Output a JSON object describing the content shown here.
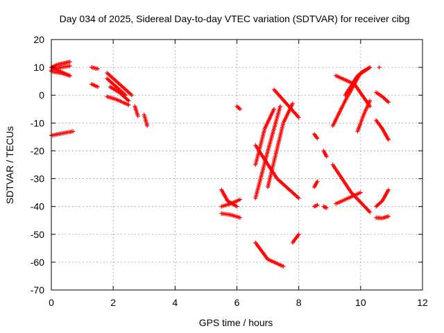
{
  "chart_data": {
    "type": "scatter",
    "title": "Day 034 of 2025, Sidereal Day-to-day VTEC variation (SDTVAR) for receiver cibg",
    "xlabel": "GPS time / hours",
    "ylabel": "SDTVAR / TECUs",
    "xlim": [
      0,
      12
    ],
    "ylim": [
      -70,
      20
    ],
    "xticks": [
      0,
      2,
      4,
      6,
      8,
      10,
      12
    ],
    "yticks": [
      20,
      10,
      0,
      -10,
      -20,
      -30,
      -40,
      -50,
      -60,
      -70
    ],
    "grid": true,
    "marker": "+",
    "marker_color": "#ff0000",
    "series": [
      {
        "name": "arc-01",
        "points": [
          [
            0.0,
            10
          ],
          [
            0.2,
            11
          ],
          [
            0.4,
            11.5
          ],
          [
            0.6,
            12
          ]
        ]
      },
      {
        "name": "arc-02",
        "points": [
          [
            0.0,
            9
          ],
          [
            0.3,
            10
          ],
          [
            0.6,
            10.5
          ]
        ]
      },
      {
        "name": "arc-03",
        "points": [
          [
            0.0,
            10
          ],
          [
            0.3,
            8.5
          ],
          [
            0.6,
            7
          ]
        ]
      },
      {
        "name": "arc-04",
        "points": [
          [
            0.0,
            8.5
          ],
          [
            0.3,
            8
          ],
          [
            0.6,
            7
          ]
        ]
      },
      {
        "name": "arc-05",
        "points": [
          [
            0.0,
            -14.5
          ],
          [
            0.3,
            -13.8
          ],
          [
            0.7,
            -13
          ]
        ]
      },
      {
        "name": "arc-06",
        "points": [
          [
            1.3,
            10
          ],
          [
            1.5,
            9.5
          ]
        ]
      },
      {
        "name": "arc-07",
        "points": [
          [
            1.3,
            4
          ],
          [
            1.5,
            3
          ]
        ]
      },
      {
        "name": "arc-08",
        "points": [
          [
            1.8,
            8
          ],
          [
            2.2,
            4
          ],
          [
            2.6,
            0
          ]
        ]
      },
      {
        "name": "arc-09",
        "points": [
          [
            1.8,
            6
          ],
          [
            2.1,
            3
          ],
          [
            2.4,
            0
          ]
        ]
      },
      {
        "name": "arc-10",
        "points": [
          [
            1.8,
            -0.5
          ],
          [
            2.1,
            -1.5
          ],
          [
            2.5,
            -3.5
          ]
        ]
      },
      {
        "name": "arc-11",
        "points": [
          [
            1.9,
            3
          ],
          [
            2.2,
            1
          ],
          [
            2.5,
            -2
          ]
        ]
      },
      {
        "name": "arc-12",
        "points": [
          [
            2.7,
            -4
          ],
          [
            2.8,
            -7.5
          ]
        ]
      },
      {
        "name": "arc-13",
        "points": [
          [
            3.0,
            -7
          ],
          [
            3.1,
            -11
          ]
        ]
      },
      {
        "name": "arc-14",
        "points": [
          [
            5.5,
            -34
          ],
          [
            5.7,
            -38
          ],
          [
            6.0,
            -40
          ]
        ]
      },
      {
        "name": "arc-15",
        "points": [
          [
            5.5,
            -40
          ],
          [
            5.8,
            -39
          ],
          [
            6.1,
            -37.5
          ]
        ]
      },
      {
        "name": "arc-16",
        "points": [
          [
            5.5,
            -42.5
          ],
          [
            5.8,
            -43
          ],
          [
            6.1,
            -44
          ]
        ]
      },
      {
        "name": "arc-17",
        "points": [
          [
            6.0,
            -4
          ],
          [
            6.1,
            -5
          ]
        ]
      },
      {
        "name": "arc-18",
        "points": [
          [
            6.6,
            -53
          ],
          [
            7.0,
            -59
          ],
          [
            7.5,
            -61.5
          ]
        ]
      },
      {
        "name": "arc-19",
        "points": [
          [
            6.6,
            -37
          ],
          [
            7.0,
            -20
          ],
          [
            7.4,
            -4
          ]
        ]
      },
      {
        "name": "arc-20",
        "points": [
          [
            6.6,
            -25
          ],
          [
            6.9,
            -12
          ],
          [
            7.2,
            -5
          ]
        ]
      },
      {
        "name": "arc-21",
        "points": [
          [
            6.6,
            -18
          ],
          [
            7.3,
            -30
          ],
          [
            8.0,
            -37
          ]
        ]
      },
      {
        "name": "arc-22",
        "points": [
          [
            7.0,
            -33
          ],
          [
            7.5,
            -10
          ],
          [
            7.8,
            -3
          ]
        ]
      },
      {
        "name": "arc-23",
        "points": [
          [
            7.2,
            2
          ],
          [
            7.6,
            -3
          ],
          [
            8.0,
            -8
          ]
        ]
      },
      {
        "name": "arc-24",
        "points": [
          [
            7.8,
            -53
          ],
          [
            8.0,
            -50
          ]
        ]
      },
      {
        "name": "arc-25",
        "points": [
          [
            8.5,
            -14
          ],
          [
            8.6,
            -15.5
          ]
        ]
      },
      {
        "name": "arc-26",
        "points": [
          [
            8.5,
            -33
          ],
          [
            8.6,
            -31
          ]
        ]
      },
      {
        "name": "arc-27",
        "points": [
          [
            8.5,
            -40
          ],
          [
            8.6,
            -39.5
          ]
        ]
      },
      {
        "name": "arc-28",
        "points": [
          [
            8.8,
            -20
          ],
          [
            8.9,
            -22
          ]
        ]
      },
      {
        "name": "arc-29",
        "points": [
          [
            8.8,
            -40
          ],
          [
            8.9,
            -40.5
          ]
        ]
      },
      {
        "name": "arc-30",
        "points": [
          [
            9.1,
            -11
          ],
          [
            9.5,
            -2
          ],
          [
            10.0,
            8
          ],
          [
            10.3,
            10
          ]
        ]
      },
      {
        "name": "arc-31",
        "points": [
          [
            9.2,
            7
          ],
          [
            9.8,
            4
          ],
          [
            10.3,
            -4
          ]
        ]
      },
      {
        "name": "arc-32",
        "points": [
          [
            9.1,
            -25
          ],
          [
            9.7,
            -35
          ],
          [
            10.3,
            -42
          ]
        ]
      },
      {
        "name": "arc-33",
        "points": [
          [
            9.2,
            -39
          ],
          [
            9.6,
            -37
          ],
          [
            10.0,
            -35
          ]
        ]
      },
      {
        "name": "arc-34",
        "points": [
          [
            9.5,
            0
          ],
          [
            9.9,
            7
          ],
          [
            10.3,
            10
          ]
        ]
      },
      {
        "name": "arc-35",
        "points": [
          [
            9.9,
            -13
          ],
          [
            10.1,
            -7
          ],
          [
            10.3,
            -2
          ]
        ]
      },
      {
        "name": "arc-36",
        "points": [
          [
            10.6,
            10
          ]
        ]
      },
      {
        "name": "arc-37",
        "points": [
          [
            10.5,
            1
          ],
          [
            10.7,
            -0.5
          ],
          [
            10.9,
            -2.5
          ]
        ]
      },
      {
        "name": "arc-38",
        "points": [
          [
            10.5,
            -9
          ],
          [
            10.7,
            -12
          ],
          [
            10.9,
            -16
          ]
        ]
      },
      {
        "name": "arc-39",
        "points": [
          [
            10.5,
            -40
          ],
          [
            10.7,
            -38
          ],
          [
            10.9,
            -34
          ]
        ]
      },
      {
        "name": "arc-40",
        "points": [
          [
            10.5,
            -44
          ],
          [
            10.7,
            -44.2
          ],
          [
            10.9,
            -43.5
          ]
        ]
      }
    ]
  }
}
